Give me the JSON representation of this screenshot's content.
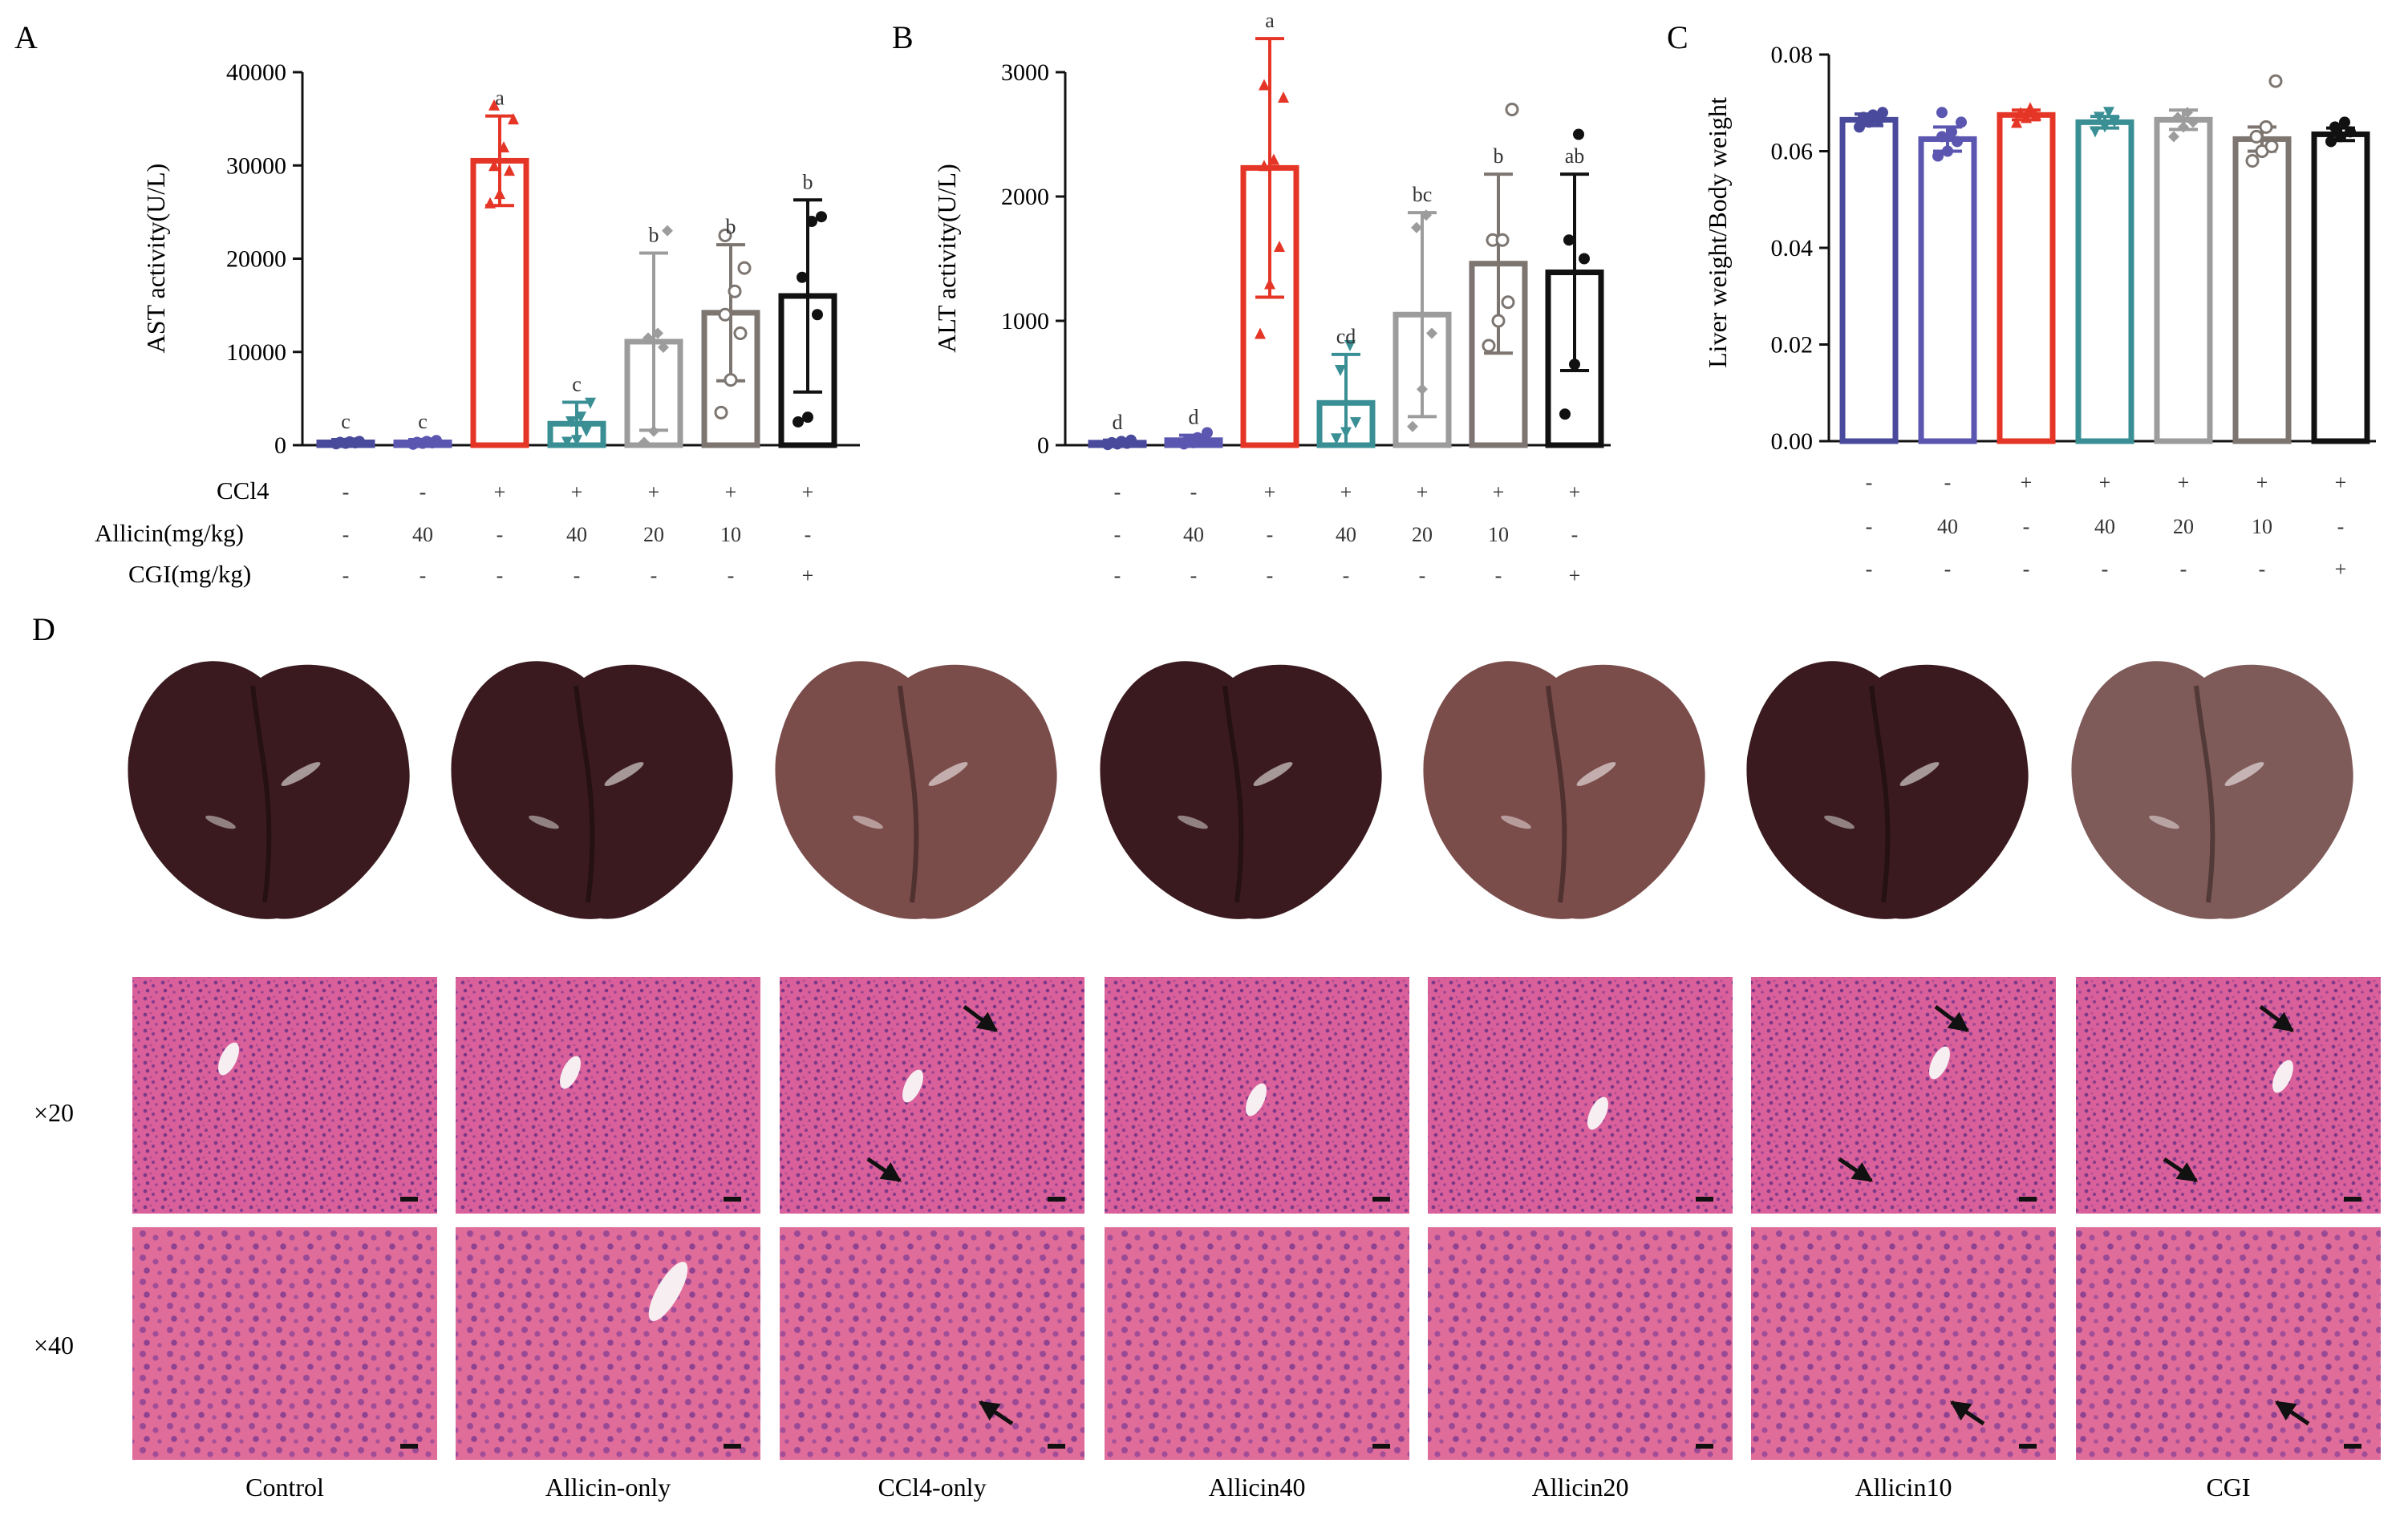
{
  "panel_letters": {
    "A": "A",
    "B": "B",
    "C": "C",
    "D": "D"
  },
  "treatment_rows": [
    {
      "label": "CCl4",
      "values": [
        "-",
        "-",
        "+",
        "+",
        "+",
        "+",
        "+"
      ]
    },
    {
      "label": "Allicin(mg/kg)",
      "values": [
        "-",
        "40",
        "-",
        "40",
        "20",
        "10",
        "-"
      ]
    },
    {
      "label": "CGI(mg/kg)",
      "values": [
        "-",
        "-",
        "-",
        "-",
        "-",
        "-",
        "+"
      ]
    }
  ],
  "colors": {
    "series": [
      "#4a4a9c",
      "#5b56b0",
      "#e53526",
      "#3a8f95",
      "#9c9c9c",
      "#7c7570",
      "#111111"
    ],
    "he_stain": "#d05a8e",
    "liver_dark": "#3a1a1e",
    "liver_light": "#7a4c4a"
  },
  "chart_data": [
    {
      "id": "A",
      "type": "bar",
      "ylabel": "AST activity(U/L)",
      "ylim": [
        0,
        40000
      ],
      "yticks": [
        0,
        10000,
        20000,
        30000,
        40000
      ],
      "tick_labels": [
        "0",
        "10000",
        "20000",
        "30000",
        "40000"
      ],
      "values": [
        300,
        300,
        30500,
        2300,
        11100,
        14200,
        16000
      ],
      "errors": [
        300,
        300,
        4800,
        2300,
        9500,
        7300,
        10300
      ],
      "letters": [
        "c",
        "c",
        "a",
        "c",
        "b",
        "b",
        "b"
      ],
      "points": [
        [
          150,
          200,
          250,
          300,
          350,
          400
        ],
        [
          100,
          200,
          250,
          300,
          400,
          500
        ],
        [
          26000,
          27000,
          29500,
          30000,
          32000,
          35000,
          36500
        ],
        [
          300,
          500,
          1500,
          2500,
          3000,
          4500
        ],
        [
          300,
          1500,
          10500,
          11500,
          12000,
          23000
        ],
        [
          3500,
          7000,
          12000,
          14000,
          16500,
          19000,
          22500
        ],
        [
          2500,
          3000,
          14000,
          18000,
          24000,
          24500
        ]
      ]
    },
    {
      "id": "B",
      "type": "bar",
      "ylabel": "ALT activity(U/L)",
      "ylim": [
        0,
        3000
      ],
      "yticks": [
        0,
        1000,
        2000,
        3000
      ],
      "tick_labels": [
        "0",
        "1000",
        "2000",
        "3000"
      ],
      "values": [
        20,
        40,
        2230,
        340,
        1050,
        1460,
        1390
      ],
      "errors": [
        20,
        40,
        1040,
        390,
        820,
        720,
        790
      ],
      "letters": [
        "d",
        "d",
        "a",
        "cd",
        "bc",
        "b",
        "ab"
      ],
      "points": [
        [
          5,
          10,
          15,
          20,
          30,
          40
        ],
        [
          10,
          20,
          30,
          40,
          60,
          100
        ],
        [
          900,
          1300,
          1600,
          2250,
          2300,
          2800,
          2900
        ],
        [
          50,
          100,
          180,
          600,
          800
        ],
        [
          150,
          450,
          900,
          1750,
          1850
        ],
        [
          800,
          1000,
          1150,
          1650,
          1650,
          2700
        ],
        [
          250,
          650,
          1500,
          1650,
          2500
        ]
      ]
    },
    {
      "id": "C",
      "type": "bar",
      "ylabel": "Liver weight/Body weight",
      "ylim": [
        0,
        0.08
      ],
      "yticks": [
        0,
        0.02,
        0.04,
        0.06,
        0.08
      ],
      "tick_labels": [
        "0.00",
        "0.02",
        "0.04",
        "0.06",
        "0.08"
      ],
      "values": [
        0.0665,
        0.0625,
        0.0675,
        0.066,
        0.0665,
        0.0625,
        0.0635
      ],
      "errors": [
        0.0012,
        0.0025,
        0.001,
        0.0012,
        0.002,
        0.0025,
        0.0013
      ],
      "letters": [],
      "points": [
        [
          0.065,
          0.066,
          0.0665,
          0.067,
          0.0675,
          0.068
        ],
        [
          0.059,
          0.06,
          0.062,
          0.063,
          0.064,
          0.066,
          0.068
        ],
        [
          0.066,
          0.067,
          0.0675,
          0.068,
          0.069
        ],
        [
          0.064,
          0.065,
          0.066,
          0.067,
          0.068
        ],
        [
          0.063,
          0.065,
          0.066,
          0.067,
          0.068
        ],
        [
          0.058,
          0.06,
          0.061,
          0.063,
          0.065,
          0.0745
        ],
        [
          0.062,
          0.063,
          0.064,
          0.065,
          0.066
        ]
      ]
    }
  ],
  "panel_d": {
    "groups": [
      "Control",
      "Allicin-only",
      "CCl4-only",
      "Allicin40",
      "Allicin20",
      "Allicin10",
      "CGI"
    ],
    "mag_labels": [
      "×20",
      "×40"
    ]
  }
}
